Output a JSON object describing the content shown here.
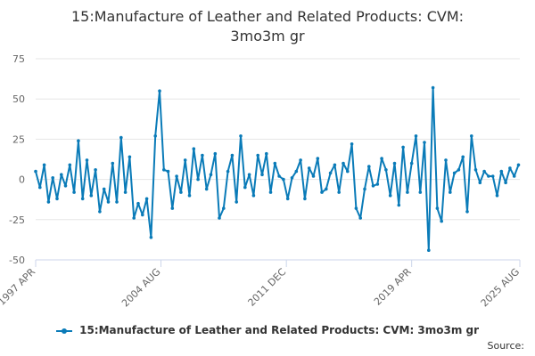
{
  "colors": {
    "series": "#0a7bb8",
    "grid": "#e6e6e6",
    "axis": "#ccd6eb",
    "text": "#666666"
  },
  "chart_data": {
    "type": "line",
    "title_lines": [
      "15:Manufacture of Leather and Related Products: CVM:",
      "3mo3m gr"
    ],
    "xlabel": "",
    "ylabel": "",
    "ylim": [
      -50,
      75
    ],
    "yticks": [
      75,
      50,
      25,
      0,
      -25,
      -50
    ],
    "xlim": [
      1997.25,
      2025.58
    ],
    "xticks": [
      {
        "label": "1997 APR",
        "x": 1997.25
      },
      {
        "label": "2004 AUG",
        "x": 2004.58
      },
      {
        "label": "2011 DEC",
        "x": 2011.92
      },
      {
        "label": "2019 APR",
        "x": 2019.25
      },
      {
        "label": "2025 AUG",
        "x": 2025.58
      }
    ],
    "legend": "bottom-center",
    "source_label": "Source:",
    "series": [
      {
        "name": "15:Manufacture of Leather and Related Products: CVM: 3mo3m gr",
        "x": [
          1997.25,
          1997.5,
          1997.75,
          1998.0,
          1998.25,
          1998.5,
          1998.75,
          1999.0,
          1999.25,
          1999.5,
          1999.75,
          2000.0,
          2000.25,
          2000.5,
          2000.75,
          2001.0,
          2001.25,
          2001.5,
          2001.75,
          2002.0,
          2002.25,
          2002.5,
          2002.75,
          2003.0,
          2003.25,
          2003.5,
          2003.75,
          2004.0,
          2004.25,
          2004.5,
          2004.75,
          2005.0,
          2005.25,
          2005.5,
          2005.75,
          2006.0,
          2006.25,
          2006.5,
          2006.75,
          2007.0,
          2007.25,
          2007.5,
          2007.75,
          2008.0,
          2008.25,
          2008.5,
          2008.75,
          2009.0,
          2009.25,
          2009.5,
          2009.75,
          2010.0,
          2010.25,
          2010.5,
          2010.75,
          2011.0,
          2011.25,
          2011.5,
          2011.75,
          2012.0,
          2012.25,
          2012.5,
          2012.75,
          2013.0,
          2013.25,
          2013.5,
          2013.75,
          2014.0,
          2014.25,
          2014.5,
          2014.75,
          2015.0,
          2015.25,
          2015.5,
          2015.75,
          2016.0,
          2016.25,
          2016.5,
          2016.75,
          2017.0,
          2017.25,
          2017.5,
          2017.75,
          2018.0,
          2018.25,
          2018.5,
          2018.75,
          2019.0,
          2019.25,
          2019.5,
          2019.75,
          2020.0,
          2020.25,
          2020.5,
          2020.75,
          2021.0,
          2021.25,
          2021.5,
          2021.75,
          2022.0,
          2022.25,
          2022.5,
          2022.75,
          2023.0,
          2023.25,
          2023.5,
          2023.75,
          2024.0,
          2024.25,
          2024.5,
          2024.75,
          2025.0,
          2025.25,
          2025.5
        ],
        "values": [
          5,
          -5,
          9,
          -14,
          1,
          -12,
          3,
          -4,
          9,
          -8,
          24,
          -12,
          12,
          -10,
          6,
          -20,
          -6,
          -14,
          10,
          -14,
          26,
          -8,
          14,
          -24,
          -15,
          -22,
          -12,
          -36,
          27,
          55,
          6,
          5,
          -18,
          2,
          -8,
          12,
          -10,
          19,
          0,
          15,
          -6,
          3,
          16,
          -24,
          -18,
          5,
          15,
          -14,
          27,
          -5,
          3,
          -10,
          15,
          3,
          16,
          -8,
          10,
          2,
          0,
          -12,
          1,
          5,
          12,
          -12,
          7,
          2,
          13,
          -8,
          -6,
          4,
          9,
          -8,
          10,
          5,
          22,
          -18,
          -24,
          -6,
          8,
          -4,
          -3,
          13,
          6,
          -10,
          10,
          -16,
          20,
          -8,
          10,
          27,
          -8,
          23,
          -44,
          57,
          -18,
          -26,
          12,
          -8,
          4,
          6,
          14,
          -20,
          27,
          6,
          -2,
          5,
          2,
          2,
          -10,
          5,
          -2,
          7,
          2,
          9
        ]
      }
    ]
  }
}
